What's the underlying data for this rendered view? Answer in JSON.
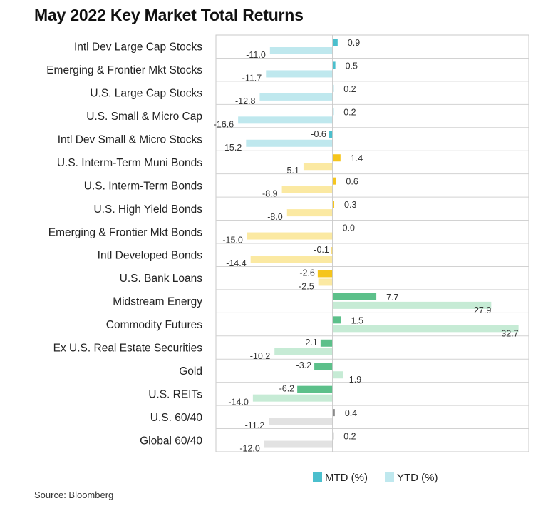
{
  "title": "May 2022 Key Market Total Returns",
  "source": "Source: Bloomberg",
  "chart_data": {
    "type": "bar",
    "orientation": "horizontal",
    "legend_position": "bottom",
    "grid": false,
    "xlim": [
      -20.5,
      34.5
    ],
    "categories": [
      "Intl Dev Large Cap Stocks",
      "Emerging & Frontier Mkt Stocks",
      "U.S. Large Cap Stocks",
      "U.S. Small & Micro Cap",
      "Intl Dev Small & Micro Stocks",
      "U.S. Interm-Term Muni Bonds",
      "U.S. Interm-Term Bonds",
      "U.S. High Yield Bonds",
      "Emerging & Frontier Mkt Bonds",
      "Intl Developed Bonds",
      "U.S. Bank Loans",
      "Midstream Energy",
      "Commodity Futures",
      "Ex U.S. Real Estate Securities",
      "Gold",
      "U.S. REITs",
      "U.S. 60/40",
      "Global 60/40"
    ],
    "groups": [
      "equity",
      "equity",
      "equity",
      "equity",
      "equity",
      "bond",
      "bond",
      "bond",
      "bond",
      "bond",
      "bond",
      "real",
      "real",
      "real",
      "real",
      "real",
      "balanced",
      "balanced"
    ],
    "series": [
      {
        "name": "MTD (%)",
        "values": [
          0.9,
          0.5,
          0.2,
          0.2,
          -0.6,
          1.4,
          0.6,
          0.3,
          0.0,
          -0.1,
          -2.6,
          7.7,
          1.5,
          -2.1,
          -3.2,
          -6.2,
          0.4,
          0.2
        ]
      },
      {
        "name": "YTD (%)",
        "values": [
          -11.0,
          -11.7,
          -12.8,
          -16.6,
          -15.2,
          -5.1,
          -8.9,
          -8.0,
          -15.0,
          -14.4,
          -2.5,
          27.9,
          32.7,
          -10.2,
          1.9,
          -14.0,
          -11.2,
          -12.0
        ]
      }
    ],
    "colors": {
      "equity": {
        "mtd": "#4bbfcd",
        "ytd": "#bfe8ee"
      },
      "bond": {
        "mtd": "#f5c51c",
        "ytd": "#fbe9a2"
      },
      "real": {
        "mtd": "#5cc08a",
        "ytd": "#c6ebd5"
      },
      "balanced": {
        "mtd": "#8a8a8a",
        "ytd": "#e2e2e2"
      }
    },
    "legend_colors": {
      "mtd": "#4bbfcd",
      "ytd": "#bfe8ee"
    }
  }
}
